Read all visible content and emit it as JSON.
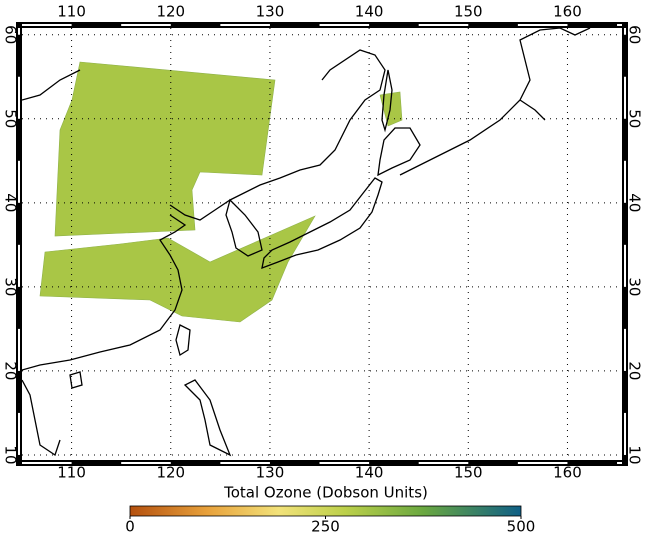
{
  "map": {
    "lon_range": [
      105,
      165.5
    ],
    "lat_range": [
      9.4,
      60.8
    ],
    "lon_ticks": [
      110,
      120,
      130,
      140,
      150,
      160
    ],
    "lat_ticks": [
      10,
      20,
      30,
      40,
      50,
      60
    ]
  },
  "colorbar": {
    "title": "Total Ozone (Dobson Units)",
    "range": [
      0,
      500
    ],
    "ticks": [
      0,
      250,
      500
    ]
  }
}
